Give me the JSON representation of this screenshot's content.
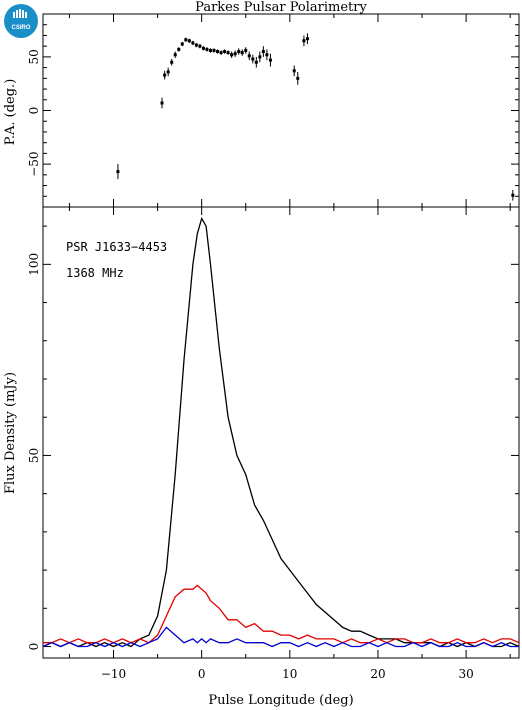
{
  "title": "Parkes Pulsar Polarimetry",
  "logo": {
    "text": "CSIRO",
    "color": "#1a8fc7"
  },
  "chart_data": [
    {
      "name": "position-angle",
      "type": "scatter",
      "ylabel": "P.A. (deg.)",
      "xlim": [
        -18,
        36
      ],
      "ylim": [
        -90,
        90
      ],
      "yticks": [
        -50,
        0,
        50
      ],
      "points": [
        {
          "x": -9.5,
          "y": -57,
          "err": 7
        },
        {
          "x": -4.5,
          "y": 7,
          "err": 5
        },
        {
          "x": -4.2,
          "y": 33,
          "err": 4
        },
        {
          "x": -3.8,
          "y": 36,
          "err": 4
        },
        {
          "x": -3.4,
          "y": 45,
          "err": 3
        },
        {
          "x": -3.0,
          "y": 52,
          "err": 3
        },
        {
          "x": -2.6,
          "y": 57,
          "err": 2
        },
        {
          "x": -2.2,
          "y": 62,
          "err": 2
        },
        {
          "x": -1.8,
          "y": 66,
          "err": 2
        },
        {
          "x": -1.4,
          "y": 65,
          "err": 2
        },
        {
          "x": -1.0,
          "y": 63,
          "err": 2
        },
        {
          "x": -0.6,
          "y": 61,
          "err": 2
        },
        {
          "x": -0.2,
          "y": 60,
          "err": 2
        },
        {
          "x": 0.2,
          "y": 58,
          "err": 2
        },
        {
          "x": 0.6,
          "y": 57,
          "err": 2
        },
        {
          "x": 1.0,
          "y": 56,
          "err": 2
        },
        {
          "x": 1.4,
          "y": 56,
          "err": 2
        },
        {
          "x": 1.8,
          "y": 55,
          "err": 2
        },
        {
          "x": 2.2,
          "y": 54,
          "err": 2
        },
        {
          "x": 2.6,
          "y": 55,
          "err": 2
        },
        {
          "x": 3.0,
          "y": 54,
          "err": 2
        },
        {
          "x": 3.4,
          "y": 52,
          "err": 3
        },
        {
          "x": 3.8,
          "y": 53,
          "err": 3
        },
        {
          "x": 4.2,
          "y": 55,
          "err": 3
        },
        {
          "x": 4.6,
          "y": 54,
          "err": 3
        },
        {
          "x": 5.0,
          "y": 56,
          "err": 3
        },
        {
          "x": 5.4,
          "y": 51,
          "err": 4
        },
        {
          "x": 5.8,
          "y": 48,
          "err": 4
        },
        {
          "x": 6.2,
          "y": 45,
          "err": 5
        },
        {
          "x": 6.6,
          "y": 50,
          "err": 5
        },
        {
          "x": 7.0,
          "y": 55,
          "err": 5
        },
        {
          "x": 7.4,
          "y": 52,
          "err": 5
        },
        {
          "x": 7.8,
          "y": 47,
          "err": 6
        },
        {
          "x": 10.5,
          "y": 37,
          "err": 5
        },
        {
          "x": 10.9,
          "y": 30,
          "err": 6
        },
        {
          "x": 11.6,
          "y": 65,
          "err": 5
        },
        {
          "x": 12.0,
          "y": 67,
          "err": 5
        },
        {
          "x": 35.3,
          "y": -79,
          "err": 5
        }
      ]
    },
    {
      "name": "flux-profile",
      "type": "line",
      "xlabel": "Pulse Longitude (deg)",
      "ylabel": "Flux Density (mJy)",
      "xlim": [
        -18,
        36
      ],
      "ylim": [
        -3,
        115
      ],
      "xticks": [
        -10,
        0,
        10,
        20,
        30
      ],
      "yticks": [
        0,
        50,
        100
      ],
      "annotations": [
        "PSR J1633−4453",
        "1368 MHz"
      ],
      "x": [
        -18,
        -17,
        -16,
        -15,
        -14,
        -13,
        -12,
        -11,
        -10,
        -9,
        -8,
        -7,
        -6,
        -5,
        -4,
        -3,
        -2,
        -1,
        -0.5,
        0,
        0.5,
        1,
        2,
        3,
        4,
        5,
        6,
        7,
        8,
        9,
        10,
        11,
        12,
        13,
        14,
        15,
        16,
        17,
        18,
        19,
        20,
        21,
        22,
        23,
        24,
        25,
        26,
        27,
        28,
        29,
        30,
        31,
        32,
        33,
        34,
        35,
        36
      ],
      "series": [
        {
          "color": "#000000",
          "values": [
            0,
            1,
            0,
            1,
            0,
            1,
            0,
            1,
            0,
            1,
            0,
            2,
            3,
            8,
            20,
            45,
            75,
            100,
            108,
            112,
            110,
            100,
            78,
            60,
            50,
            45,
            37,
            33,
            28,
            23,
            20,
            17,
            14,
            11,
            9,
            7,
            5,
            4,
            4,
            3,
            2,
            2,
            2,
            1,
            1,
            1,
            1,
            0,
            1,
            0,
            1,
            0,
            1,
            0,
            0,
            1,
            0
          ]
        },
        {
          "color": "#e00000",
          "values": [
            1,
            1,
            2,
            1,
            2,
            1,
            1,
            2,
            1,
            2,
            1,
            2,
            1,
            3,
            8,
            13,
            15,
            15,
            16,
            15,
            14,
            12,
            10,
            7,
            7,
            5,
            6,
            4,
            4,
            3,
            3,
            2,
            3,
            2,
            2,
            2,
            1,
            2,
            1,
            1,
            2,
            1,
            2,
            2,
            1,
            1,
            2,
            1,
            1,
            2,
            1,
            1,
            2,
            1,
            2,
            2,
            1
          ]
        },
        {
          "color": "#0000d0",
          "values": [
            0,
            1,
            0,
            1,
            0,
            0,
            1,
            0,
            1,
            0,
            1,
            0,
            1,
            2,
            5,
            3,
            1,
            2,
            1,
            2,
            1,
            2,
            1,
            1,
            2,
            1,
            1,
            1,
            0,
            1,
            1,
            0,
            1,
            0,
            1,
            0,
            1,
            0,
            0,
            1,
            0,
            1,
            0,
            0,
            1,
            0,
            1,
            0,
            0,
            1,
            0,
            0,
            1,
            0,
            1,
            0,
            0
          ]
        }
      ]
    }
  ]
}
